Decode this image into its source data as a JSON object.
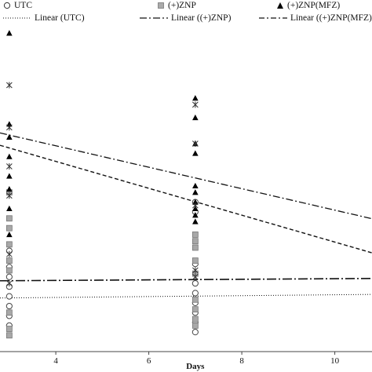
{
  "chart_data": {
    "type": "scatter",
    "xlabel": "Days",
    "ylabel": "",
    "xlim": [
      2.8,
      10.8
    ],
    "ylim": [
      0,
      100
    ],
    "x_ticks": [
      4,
      6,
      8,
      10
    ],
    "grid": false,
    "legend_position": "top",
    "series": [
      {
        "name": "UTC",
        "marker": "open-circle",
        "points": [
          {
            "x": 3,
            "y": 8
          },
          {
            "x": 3,
            "y": 11
          },
          {
            "x": 3,
            "y": 14
          },
          {
            "x": 3,
            "y": 17
          },
          {
            "x": 3,
            "y": 20
          },
          {
            "x": 3,
            "y": 23
          },
          {
            "x": 3,
            "y": 26
          },
          {
            "x": 3,
            "y": 31
          },
          {
            "x": 7,
            "y": 6
          },
          {
            "x": 7,
            "y": 9
          },
          {
            "x": 7,
            "y": 12
          },
          {
            "x": 7,
            "y": 15
          },
          {
            "x": 7,
            "y": 18
          },
          {
            "x": 7,
            "y": 21
          },
          {
            "x": 7,
            "y": 27
          },
          {
            "x": 7,
            "y": 43
          },
          {
            "x": 7,
            "y": 46
          }
        ]
      },
      {
        "name": "(+)ZNP",
        "marker": "gray-square",
        "points": [
          {
            "x": 3,
            "y": 5
          },
          {
            "x": 3,
            "y": 7
          },
          {
            "x": 3,
            "y": 12
          },
          {
            "x": 3,
            "y": 25
          },
          {
            "x": 3,
            "y": 28
          },
          {
            "x": 3,
            "y": 33
          },
          {
            "x": 3,
            "y": 38
          },
          {
            "x": 3,
            "y": 41
          },
          {
            "x": 3,
            "y": 49
          },
          {
            "x": 7,
            "y": 8
          },
          {
            "x": 7,
            "y": 10
          },
          {
            "x": 7,
            "y": 13
          },
          {
            "x": 7,
            "y": 16
          },
          {
            "x": 7,
            "y": 24
          },
          {
            "x": 7,
            "y": 28
          },
          {
            "x": 7,
            "y": 32
          },
          {
            "x": 7,
            "y": 34
          },
          {
            "x": 7,
            "y": 36
          }
        ]
      },
      {
        "name": "(+)ZNP(MFZ)",
        "marker": "filled-triangle",
        "points": [
          {
            "x": 3,
            "y": 98
          },
          {
            "x": 3,
            "y": 70
          },
          {
            "x": 3,
            "y": 66
          },
          {
            "x": 3,
            "y": 60
          },
          {
            "x": 3,
            "y": 54
          },
          {
            "x": 3,
            "y": 50
          },
          {
            "x": 3,
            "y": 44
          },
          {
            "x": 3,
            "y": 36
          },
          {
            "x": 7,
            "y": 78
          },
          {
            "x": 7,
            "y": 72
          },
          {
            "x": 7,
            "y": 64
          },
          {
            "x": 7,
            "y": 61
          },
          {
            "x": 7,
            "y": 51
          },
          {
            "x": 7,
            "y": 49
          },
          {
            "x": 7,
            "y": 46
          },
          {
            "x": 7,
            "y": 44
          },
          {
            "x": 7,
            "y": 42
          },
          {
            "x": 7,
            "y": 40
          }
        ]
      },
      {
        "name": "",
        "marker": "x-cross",
        "points": [
          {
            "x": 3,
            "y": 82
          },
          {
            "x": 3,
            "y": 69
          },
          {
            "x": 3,
            "y": 57
          },
          {
            "x": 3,
            "y": 48
          },
          {
            "x": 3,
            "y": 30
          },
          {
            "x": 3,
            "y": 21
          },
          {
            "x": 7,
            "y": 76
          },
          {
            "x": 7,
            "y": 64
          },
          {
            "x": 7,
            "y": 45
          },
          {
            "x": 7,
            "y": 25
          },
          {
            "x": 7,
            "y": 23
          }
        ]
      }
    ],
    "trendlines": [
      {
        "name": "Linear (UTC)",
        "style": "dotted",
        "x": [
          2.8,
          10.8
        ],
        "y": [
          16.5,
          17.6
        ]
      },
      {
        "name": "Linear ((+)ZNP)",
        "style": "dash-dot-long",
        "x": [
          2.8,
          10.8
        ],
        "y": [
          21.8,
          22.5
        ]
      },
      {
        "name": "Linear ((+)ZNP(MFZ)",
        "style": "dash-dot",
        "x": [
          2.8,
          10.8
        ],
        "y": [
          67.3,
          40.9
        ]
      },
      {
        "name": "",
        "style": "dashed",
        "x": [
          2.8,
          10.8
        ],
        "y": [
          63.5,
          30.4
        ]
      }
    ]
  }
}
